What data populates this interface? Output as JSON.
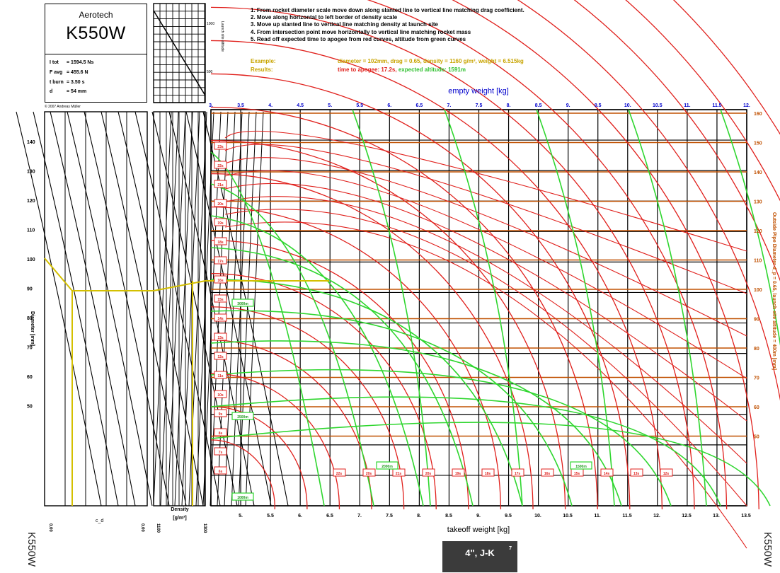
{
  "info": {
    "manufacturer": "Aerotech",
    "motor": "K550W",
    "stats": [
      {
        "label": "I tot",
        "value": "1594.5 Ns"
      },
      {
        "label": "F avg",
        "value": "455.6 N"
      },
      {
        "label": "t burn",
        "value": "3.50 s"
      },
      {
        "label": "d",
        "value": "54 mm"
      }
    ],
    "copyright": "© 2007 Andreas Müller"
  },
  "instructions": [
    "1. From rocket diameter scale move down along slanted line to vertical line matching drag coefficient.",
    "2. Move along horizontal to left border of density scale",
    "3. Move up slanted line to vertical line matching density at launch site",
    "4. From intersection point move horizontally to vertical line matching rocket mass",
    "5. Read off expected time to apogee from red curves, altitude from green curves"
  ],
  "example": {
    "label": "Example:",
    "text": "diameter = 102mm, drag = 0.65, density = 1160 g/m³, weight = 6.515kg"
  },
  "results": {
    "label": "Results:",
    "text": "time to apogee: 17.2s,",
    "text2": "expected altitude: 1591m"
  },
  "side_label": "K550W",
  "footer_badge": {
    "text": "4\", J-K",
    "sup": "7"
  },
  "colors": {
    "time": "#e0201c",
    "altitude": "#2fd62f",
    "example": "#d4c000",
    "density_axis": "#c05000",
    "empty_axis": "#0000cc",
    "grid": "#000000"
  },
  "chart_data": {
    "type": "nomogram",
    "top_axis": {
      "label": "empty weight [kg]",
      "ticks": [
        "3.",
        "3.5",
        "4.",
        "4.5",
        "5.",
        "5.5",
        "6.",
        "6.5",
        "7.",
        "7.5",
        "8.",
        "8.5",
        "9.",
        "9.5",
        "10.",
        "10.5",
        "11.",
        "11.5",
        "12."
      ]
    },
    "bottom_axis": {
      "label": "takeoff weight [kg]",
      "ticks": [
        "5.",
        "5.5",
        "6.",
        "6.5",
        "7.",
        "7.5",
        "8.",
        "8.5",
        "9.",
        "9.5",
        "10.",
        "10.5",
        "11.",
        "11.5",
        "12.",
        "12.5",
        "13.",
        "13.5"
      ]
    },
    "right_axis": {
      "label": "Outside Pipe Diameter d_p = 0.65, launch site altitude = 400m [mm]",
      "ticks": [
        "160",
        "150",
        "140",
        "130",
        "120",
        "110",
        "100",
        "90",
        "80",
        "70",
        "60",
        "50"
      ]
    },
    "left_axis": {
      "label": "Diameter [mm]",
      "ticks": [
        "140",
        "130",
        "120",
        "110",
        "100",
        "90",
        "80",
        "70",
        "60",
        "50"
      ]
    },
    "left_bottom": {
      "min": "0.00",
      "mid": "c_d",
      "max": "0.00",
      "unit": "c_d"
    },
    "density_axis": {
      "min": "1100",
      "max": "1300",
      "label": "Density",
      "unit": "[g/m³]"
    },
    "small_axis": {
      "label": "Launch site altitude",
      "ticks": [
        "1000",
        "500"
      ]
    },
    "time_labels": [
      "23s",
      "22s",
      "21s",
      "20s",
      "19s",
      "18s",
      "17s",
      "16s",
      "15s",
      "14s",
      "13s",
      "12s",
      "11s",
      "10s",
      "9s",
      "8s",
      "7s",
      "6s"
    ],
    "time_bottom_labels": [
      "22s",
      "20s",
      "21s",
      "20s",
      "19s",
      "18s",
      "17s",
      "16s",
      "15s",
      "14s",
      "13s",
      "12s"
    ],
    "altitude_labels": [
      "3000m",
      "2500m",
      "2000m",
      "1500m",
      "1000m"
    ],
    "example_path": {
      "diameter_mm": 102,
      "drag": 0.65,
      "density": 1160,
      "takeoff_weight_kg": 6.515,
      "time_to_apogee_s": 17.2,
      "altitude_m": 1591
    }
  }
}
